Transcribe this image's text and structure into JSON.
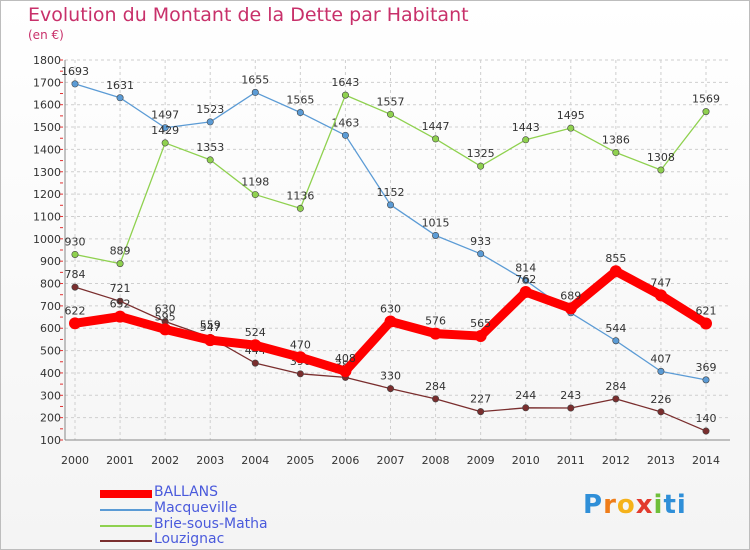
{
  "header": {
    "title": "Evolution du Montant de la Dette par Habitant",
    "subtitle": "(en €)"
  },
  "logo": {
    "text": "Proxiti",
    "letters": [
      "P",
      "r",
      "o",
      "x",
      "i",
      "ti"
    ]
  },
  "chart_data": {
    "type": "line",
    "title": "Evolution du Montant de la Dette par Habitant",
    "subtitle": "(en €)",
    "xlabel": "",
    "ylabel": "",
    "categories": [
      "2000",
      "2001",
      "2002",
      "2003",
      "2004",
      "2005",
      "2006",
      "2007",
      "2008",
      "2009",
      "2010",
      "2011",
      "2012",
      "2013",
      "2014"
    ],
    "ylim": [
      100,
      1800
    ],
    "yticks": [
      100,
      200,
      300,
      400,
      500,
      600,
      700,
      800,
      900,
      1000,
      1100,
      1200,
      1300,
      1400,
      1500,
      1600,
      1700,
      1800
    ],
    "grid": true,
    "legend_position": "bottom-left",
    "series": [
      {
        "name": "Macqueville",
        "color": "#5b9bd5",
        "values": [
          1693,
          1631,
          1497,
          1523,
          1655,
          1565,
          1463,
          1152,
          1015,
          933,
          814,
          669,
          544,
          407,
          369
        ],
        "labels": [
          "1693",
          "1631",
          "1497",
          "1523",
          "1655",
          "1565",
          "1463",
          "1152",
          "1015",
          "933",
          "814",
          "",
          "544",
          "407",
          "369"
        ]
      },
      {
        "name": "Brie-sous-Matha",
        "color": "#8fd14f",
        "values": [
          930,
          889,
          1429,
          1353,
          1198,
          1136,
          1643,
          1557,
          1447,
          1325,
          1443,
          1495,
          1386,
          1308,
          1569
        ],
        "labels": [
          "930",
          "889",
          "1429",
          "1353",
          "1198",
          "1136",
          "1643",
          "1557",
          "1447",
          "1325",
          "1443",
          "1495",
          "1386",
          "1308",
          "1569"
        ]
      },
      {
        "name": "Louzignac",
        "color": "#7a2e2e",
        "values": [
          784,
          721,
          630,
          559,
          444,
          396,
          380,
          330,
          284,
          227,
          244,
          243,
          284,
          226,
          140
        ],
        "labels": [
          "784",
          "721",
          "630",
          "559",
          "444",
          "396",
          "380",
          "330",
          "284",
          "227",
          "244",
          "243",
          "284",
          "226",
          "140"
        ]
      },
      {
        "name": "BALLANS",
        "color": "#ff0000",
        "values": [
          622,
          652,
          595,
          547,
          524,
          470,
          408,
          630,
          576,
          565,
          762,
          689,
          855,
          747,
          621
        ],
        "labels": [
          "622",
          "652",
          "595",
          "547",
          "524",
          "470",
          "408",
          "630",
          "576",
          "565",
          "762",
          "689",
          "855",
          "747",
          "621"
        ]
      }
    ]
  },
  "legend": {
    "items": [
      {
        "name": "BALLANS",
        "color": "#ff0000",
        "thick": true
      },
      {
        "name": "Macqueville",
        "color": "#5b9bd5",
        "thick": false
      },
      {
        "name": "Brie-sous-Matha",
        "color": "#8fd14f",
        "thick": false
      },
      {
        "name": "Louzignac",
        "color": "#7a2e2e",
        "thick": false
      }
    ]
  }
}
